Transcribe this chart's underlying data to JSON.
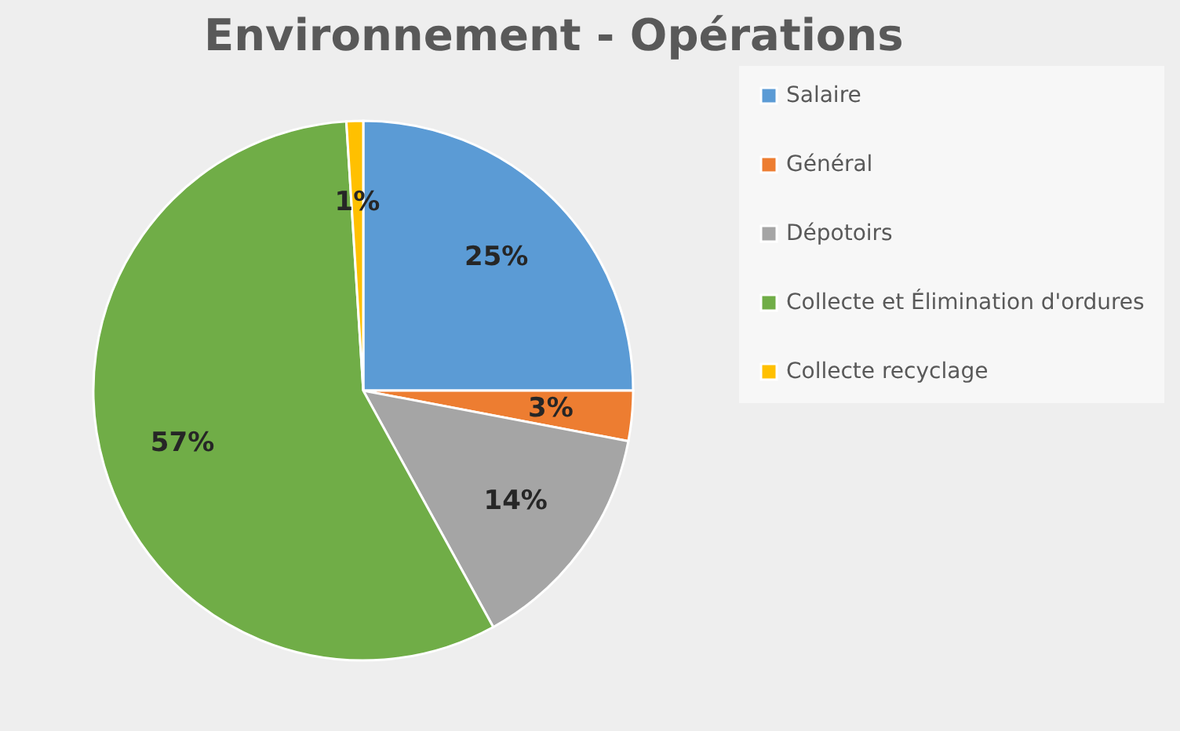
{
  "chart_data": {
    "type": "pie",
    "title": "Environnement - Opérations",
    "categories": [
      "Salaire",
      "Général",
      "Dépotoirs",
      "Collecte et Élimination d'ordures",
      "Collecte recyclage"
    ],
    "values": [
      25,
      3,
      14,
      57,
      1
    ],
    "colors": [
      "#5b9bd5",
      "#ed7d31",
      "#a5a5a5",
      "#70ad47",
      "#ffc000"
    ],
    "value_labels": [
      "25%",
      "3%",
      "14%",
      "57%",
      "1%"
    ],
    "legend": "right"
  }
}
